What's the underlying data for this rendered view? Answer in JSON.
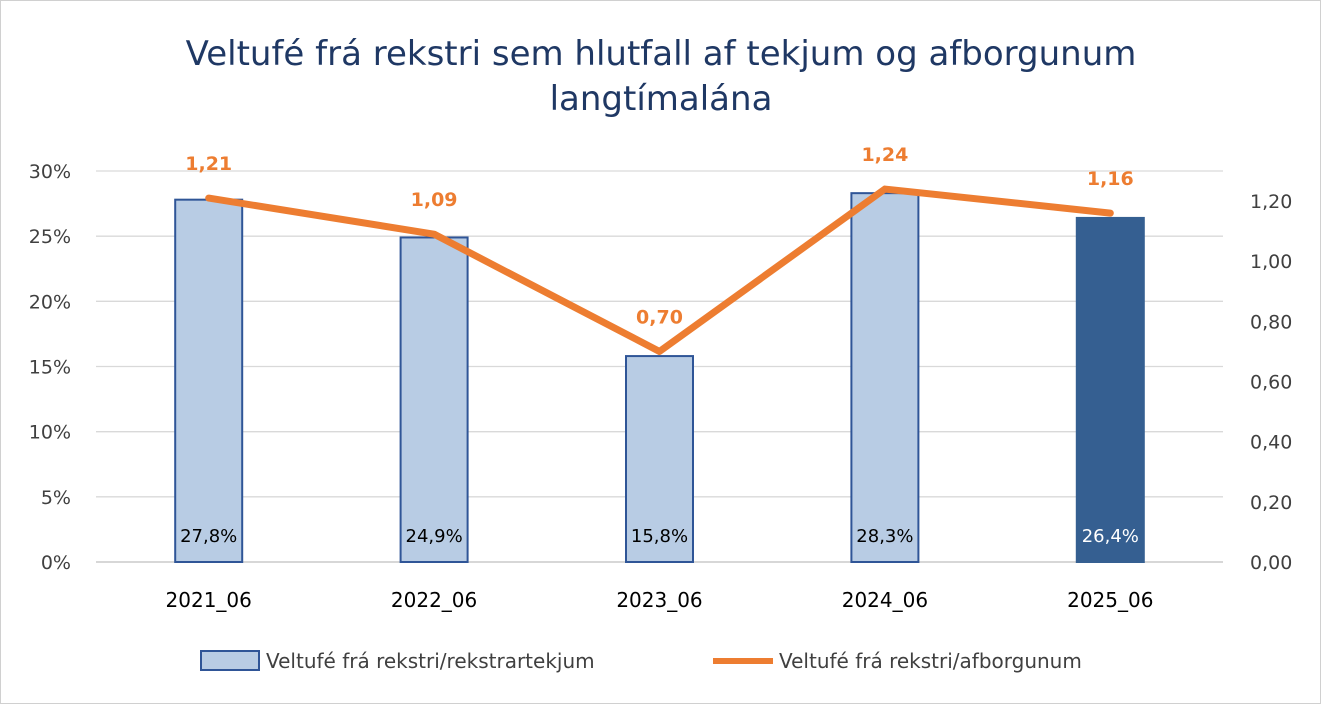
{
  "chart_data": {
    "type": "bar",
    "title_lines": [
      "Veltufé frá rekstri sem hlutfall af tekjum og afborgunum",
      "langtímalána"
    ],
    "categories": [
      "2021_06",
      "2022_06",
      "2023_06",
      "2024_06",
      "2025_06"
    ],
    "series": [
      {
        "name": "Veltufé frá rekstri/rekstrartekjum",
        "type": "bar",
        "axis": "left",
        "values": [
          27.8,
          24.9,
          15.8,
          28.3,
          26.4
        ],
        "labels": [
          "27,8%",
          "24,9%",
          "15,8%",
          "28,3%",
          "26,4%"
        ],
        "color": "#b8cce4",
        "highlight_color": "#355f91",
        "highlight_index": 4,
        "border_color": "#2f5597"
      },
      {
        "name": "Veltufé frá rekstri/afborgunum",
        "type": "line",
        "axis": "right",
        "values": [
          1.21,
          1.09,
          0.7,
          1.24,
          1.16
        ],
        "labels": [
          "1,21",
          "1,09",
          "0,70",
          "1,24",
          "1,16"
        ],
        "color": "#ed7d31"
      }
    ],
    "y_left": {
      "ylim": [
        0,
        30
      ],
      "ticks": [
        0,
        5,
        10,
        15,
        20,
        25,
        30
      ],
      "tick_labels": [
        "0%",
        "5%",
        "10%",
        "15%",
        "20%",
        "25%",
        "30%"
      ]
    },
    "y_right": {
      "ylim": [
        0,
        1.3
      ],
      "ticks": [
        0,
        0.2,
        0.4,
        0.6,
        0.8,
        1.0,
        1.2
      ],
      "tick_labels": [
        "0,00",
        "0,20",
        "0,40",
        "0,60",
        "0,80",
        "1,00",
        "1,20"
      ]
    },
    "grid": true,
    "legend_position": "bottom",
    "colors": {
      "title": "#1f3864",
      "grid": "#d9d9d9",
      "axis_text": "#404040"
    }
  }
}
